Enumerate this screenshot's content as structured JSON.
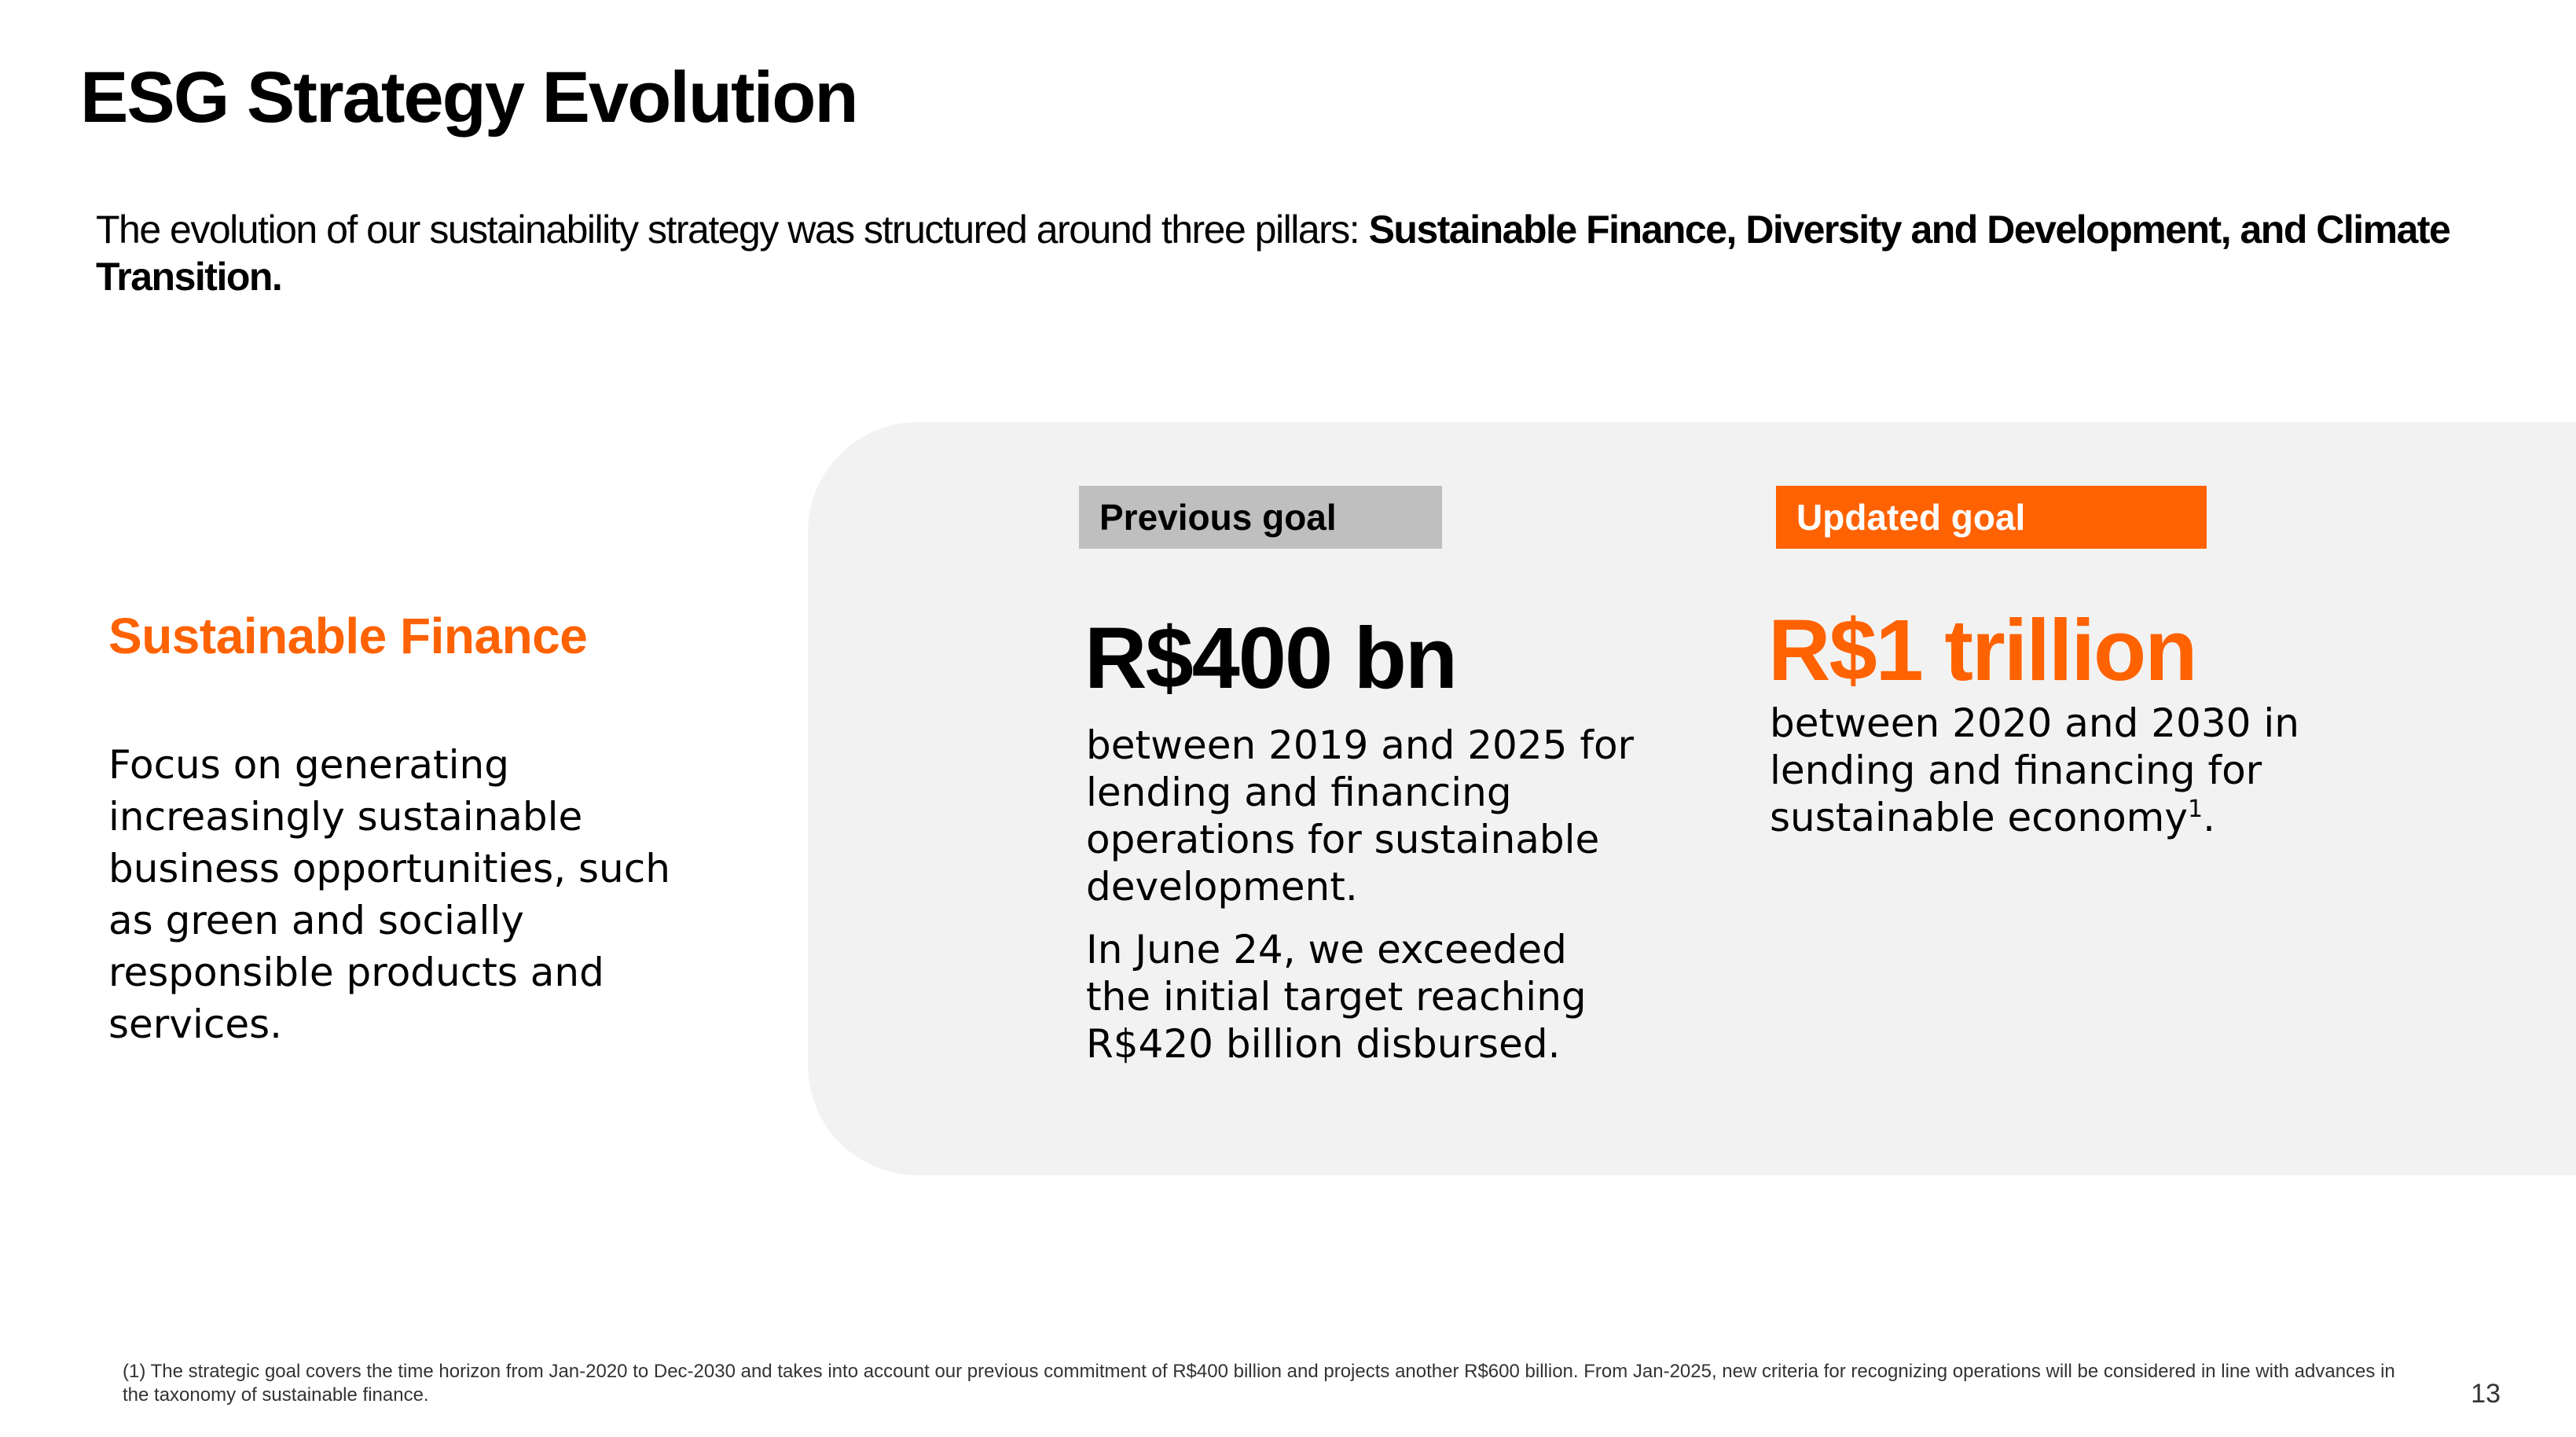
{
  "page": {
    "title": "ESG Strategy Evolution",
    "intro_plain": "The evolution of our sustainability strategy was structured around three pillars: ",
    "intro_bold": "Sustainable Finance, Diversity and Development, and Climate Transition.",
    "page_number": "13"
  },
  "pillar": {
    "heading": "Sustainable Finance",
    "description": "Focus on generating increasingly sustainable business opportunities, such as green and socially responsible products and services."
  },
  "previous_goal": {
    "label": "Previous goal",
    "value": "R$400 bn",
    "text_1": "between 2019 and 2025 for lending and financing operations for sustainable development.",
    "text_2": "In June 24, we exceeded the initial target reaching R$420 billion disbursed."
  },
  "updated_goal": {
    "label": "Updated goal",
    "value": "R$1 trillion",
    "text": "between 2020 and 2030 in lending and financing for sustainable economy",
    "footnote_ref": "1",
    "text_end": "."
  },
  "footnote": {
    "text": "(1) The strategic goal covers the time horizon from Jan-2020 to Dec-2030 and takes into account our previous commitment of R$400 billion and projects another R$600 billion. From Jan-2025, new criteria for recognizing operations will be considered in line with advances in the taxonomy of sustainable finance."
  },
  "colors": {
    "accent": "#ff6200",
    "previous_tag_bg": "#bfbfbf",
    "panel_bg": "#f2f2f2"
  }
}
